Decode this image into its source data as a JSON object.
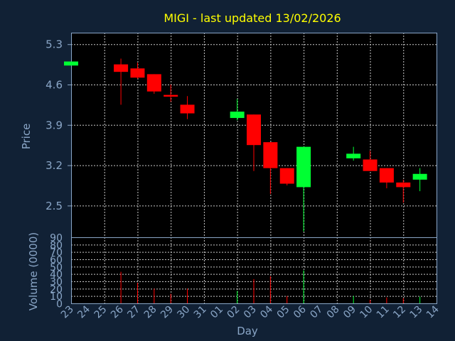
{
  "chart_data": {
    "type": "candlestick",
    "title": "MIGI - last updated 13/02/2026",
    "price_panel": {
      "ylabel": "Price",
      "ylim": [
        1.95,
        5.5
      ],
      "yticks": [
        2.5,
        3.2,
        3.9,
        4.6,
        5.3
      ],
      "ytick_labels": [
        "2.5",
        "3.2",
        "3.9",
        "4.6",
        "5.3"
      ]
    },
    "volume_panel": {
      "ylabel": "Volume (0000)",
      "ylim": [
        0,
        90
      ],
      "yticks": [
        0,
        10,
        20,
        30,
        40,
        50,
        60,
        70,
        80,
        90
      ],
      "ytick_labels": [
        "0",
        "10",
        "20",
        "30",
        "40",
        "50",
        "60",
        "70",
        "80",
        "90"
      ]
    },
    "xlabel": "Day",
    "x_tick_labels": [
      "23",
      "24",
      "25",
      "26",
      "27",
      "28",
      "29",
      "30",
      "31",
      "01",
      "02",
      "03",
      "04",
      "05",
      "06",
      "07",
      "08",
      "09",
      "10",
      "11",
      "12",
      "13",
      "14"
    ],
    "candles": [
      {
        "day": "23",
        "open": 4.93,
        "high": 5.0,
        "low": 4.93,
        "close": 5.0,
        "volume": 0
      },
      {
        "day": "26",
        "open": 4.95,
        "high": 5.05,
        "low": 4.25,
        "close": 4.82,
        "volume": 43
      },
      {
        "day": "27",
        "open": 4.88,
        "high": 4.98,
        "low": 4.7,
        "close": 4.72,
        "volume": 28
      },
      {
        "day": "28",
        "open": 4.78,
        "high": 4.78,
        "low": 4.44,
        "close": 4.48,
        "volume": 20
      },
      {
        "day": "29",
        "open": 4.42,
        "high": 4.6,
        "low": 4.3,
        "close": 4.39,
        "volume": 13
      },
      {
        "day": "30",
        "open": 4.25,
        "high": 4.4,
        "low": 4.0,
        "close": 4.1,
        "volume": 20
      },
      {
        "day": "02",
        "open": 4.02,
        "high": 4.35,
        "low": 3.98,
        "close": 4.13,
        "volume": 17
      },
      {
        "day": "03",
        "open": 4.08,
        "high": 4.08,
        "low": 3.1,
        "close": 3.55,
        "volume": 33
      },
      {
        "day": "04",
        "open": 3.6,
        "high": 3.6,
        "low": 2.7,
        "close": 3.15,
        "volume": 37
      },
      {
        "day": "05",
        "open": 3.15,
        "high": 3.15,
        "low": 2.85,
        "close": 2.88,
        "volume": 10
      },
      {
        "day": "06",
        "open": 2.82,
        "high": 3.52,
        "low": 2.05,
        "close": 3.52,
        "volume": 45
      },
      {
        "day": "09",
        "open": 3.32,
        "high": 3.52,
        "low": 3.28,
        "close": 3.4,
        "volume": 10
      },
      {
        "day": "10",
        "open": 3.3,
        "high": 3.45,
        "low": 3.1,
        "close": 3.1,
        "volume": 5
      },
      {
        "day": "11",
        "open": 3.15,
        "high": 3.15,
        "low": 2.8,
        "close": 2.9,
        "volume": 8
      },
      {
        "day": "12",
        "open": 2.9,
        "high": 2.95,
        "low": 2.55,
        "close": 2.82,
        "volume": 7
      },
      {
        "day": "13",
        "open": 2.95,
        "high": 3.15,
        "low": 2.75,
        "close": 3.05,
        "volume": 9
      }
    ]
  },
  "colors": {
    "background": "#112135",
    "plot_background": "#000000",
    "grid": "#c8c8c8",
    "up": "#00ff33",
    "down": "#ff0000",
    "title": "#ffff00",
    "axis_text": "#8aa6c7",
    "axis_line": "#8aa6c7"
  }
}
